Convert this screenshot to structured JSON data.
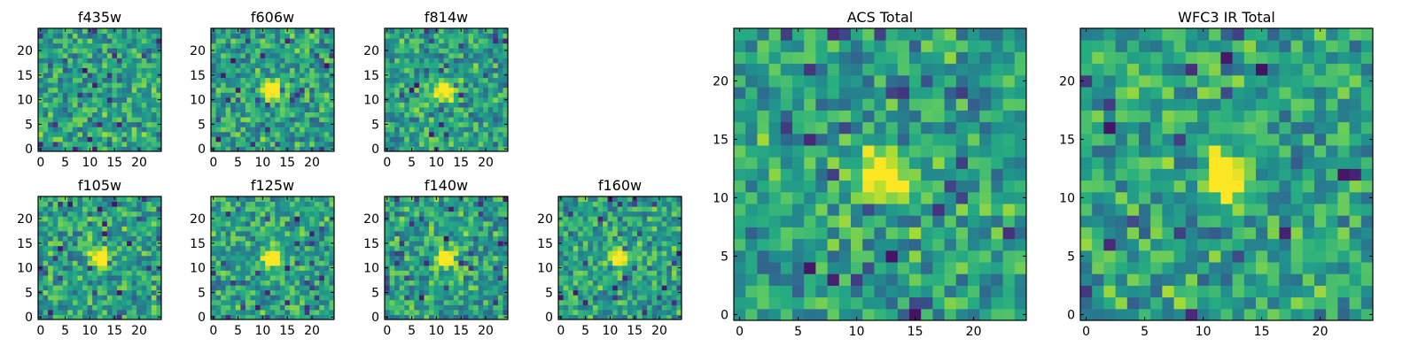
{
  "figure": {
    "colormap": "viridis",
    "colors": {
      "frame": "#000000",
      "background": "#ffffff",
      "viridis_low": "#440154",
      "viridis_mid": "#21918c",
      "viridis_high": "#fde725"
    }
  },
  "chart_data": [
    {
      "id": "f435w",
      "type": "heatmap",
      "title": "f435w",
      "grid_size": 25,
      "xlim": [
        0,
        25
      ],
      "ylim": [
        0,
        25
      ],
      "xticks": [
        0,
        5,
        10,
        15,
        20
      ],
      "yticks": [
        0,
        5,
        10,
        15,
        20
      ],
      "source_peak": null,
      "seed": 11
    },
    {
      "id": "f606w",
      "type": "heatmap",
      "title": "f606w",
      "grid_size": 25,
      "xlim": [
        0,
        25
      ],
      "ylim": [
        0,
        25
      ],
      "xticks": [
        0,
        5,
        10,
        15,
        20
      ],
      "yticks": [
        0,
        5,
        10,
        15,
        20
      ],
      "source_peak": [
        12,
        12
      ],
      "seed": 23
    },
    {
      "id": "f814w",
      "type": "heatmap",
      "title": "f814w",
      "grid_size": 25,
      "xlim": [
        0,
        25
      ],
      "ylim": [
        0,
        25
      ],
      "xticks": [
        0,
        5,
        10,
        15,
        20
      ],
      "yticks": [
        0,
        5,
        10,
        15,
        20
      ],
      "source_peak": [
        12,
        12
      ],
      "seed": 37
    },
    {
      "id": "f105w",
      "type": "heatmap",
      "title": "f105w",
      "grid_size": 25,
      "xlim": [
        0,
        25
      ],
      "ylim": [
        0,
        25
      ],
      "xticks": [
        0,
        5,
        10,
        15,
        20
      ],
      "yticks": [
        0,
        5,
        10,
        15,
        20
      ],
      "source_peak": [
        12,
        12
      ],
      "seed": 41
    },
    {
      "id": "f125w",
      "type": "heatmap",
      "title": "f125w",
      "grid_size": 25,
      "xlim": [
        0,
        25
      ],
      "ylim": [
        0,
        25
      ],
      "xticks": [
        0,
        5,
        10,
        15,
        20
      ],
      "yticks": [
        0,
        5,
        10,
        15,
        20
      ],
      "source_peak": [
        12,
        12
      ],
      "seed": 53
    },
    {
      "id": "f140w",
      "type": "heatmap",
      "title": "f140w",
      "grid_size": 25,
      "xlim": [
        0,
        25
      ],
      "ylim": [
        0,
        25
      ],
      "xticks": [
        0,
        5,
        10,
        15,
        20
      ],
      "yticks": [
        0,
        5,
        10,
        15,
        20
      ],
      "source_peak": [
        12,
        12
      ],
      "seed": 67
    },
    {
      "id": "f160w",
      "type": "heatmap",
      "title": "f160w",
      "grid_size": 25,
      "xlim": [
        0,
        25
      ],
      "ylim": [
        0,
        25
      ],
      "xticks": [
        0,
        5,
        10,
        15,
        20
      ],
      "yticks": [
        0,
        5,
        10,
        15,
        20
      ],
      "source_peak": [
        12,
        12
      ],
      "seed": 79
    },
    {
      "id": "acs_total",
      "type": "heatmap",
      "title": "ACS Total",
      "grid_size": 25,
      "xlim": [
        0,
        25
      ],
      "ylim": [
        0,
        25
      ],
      "xticks": [
        0,
        5,
        10,
        15,
        20
      ],
      "yticks": [
        0,
        5,
        10,
        15,
        20
      ],
      "source_peak": [
        12,
        12
      ],
      "seed": 83
    },
    {
      "id": "wfc3_ir_total",
      "type": "heatmap",
      "title": "WFC3 IR Total",
      "grid_size": 25,
      "xlim": [
        0,
        25
      ],
      "ylim": [
        0,
        25
      ],
      "xticks": [
        0,
        5,
        10,
        15,
        20
      ],
      "yticks": [
        0,
        5,
        10,
        15,
        20
      ],
      "source_peak": [
        12,
        12
      ],
      "seed": 97
    }
  ]
}
